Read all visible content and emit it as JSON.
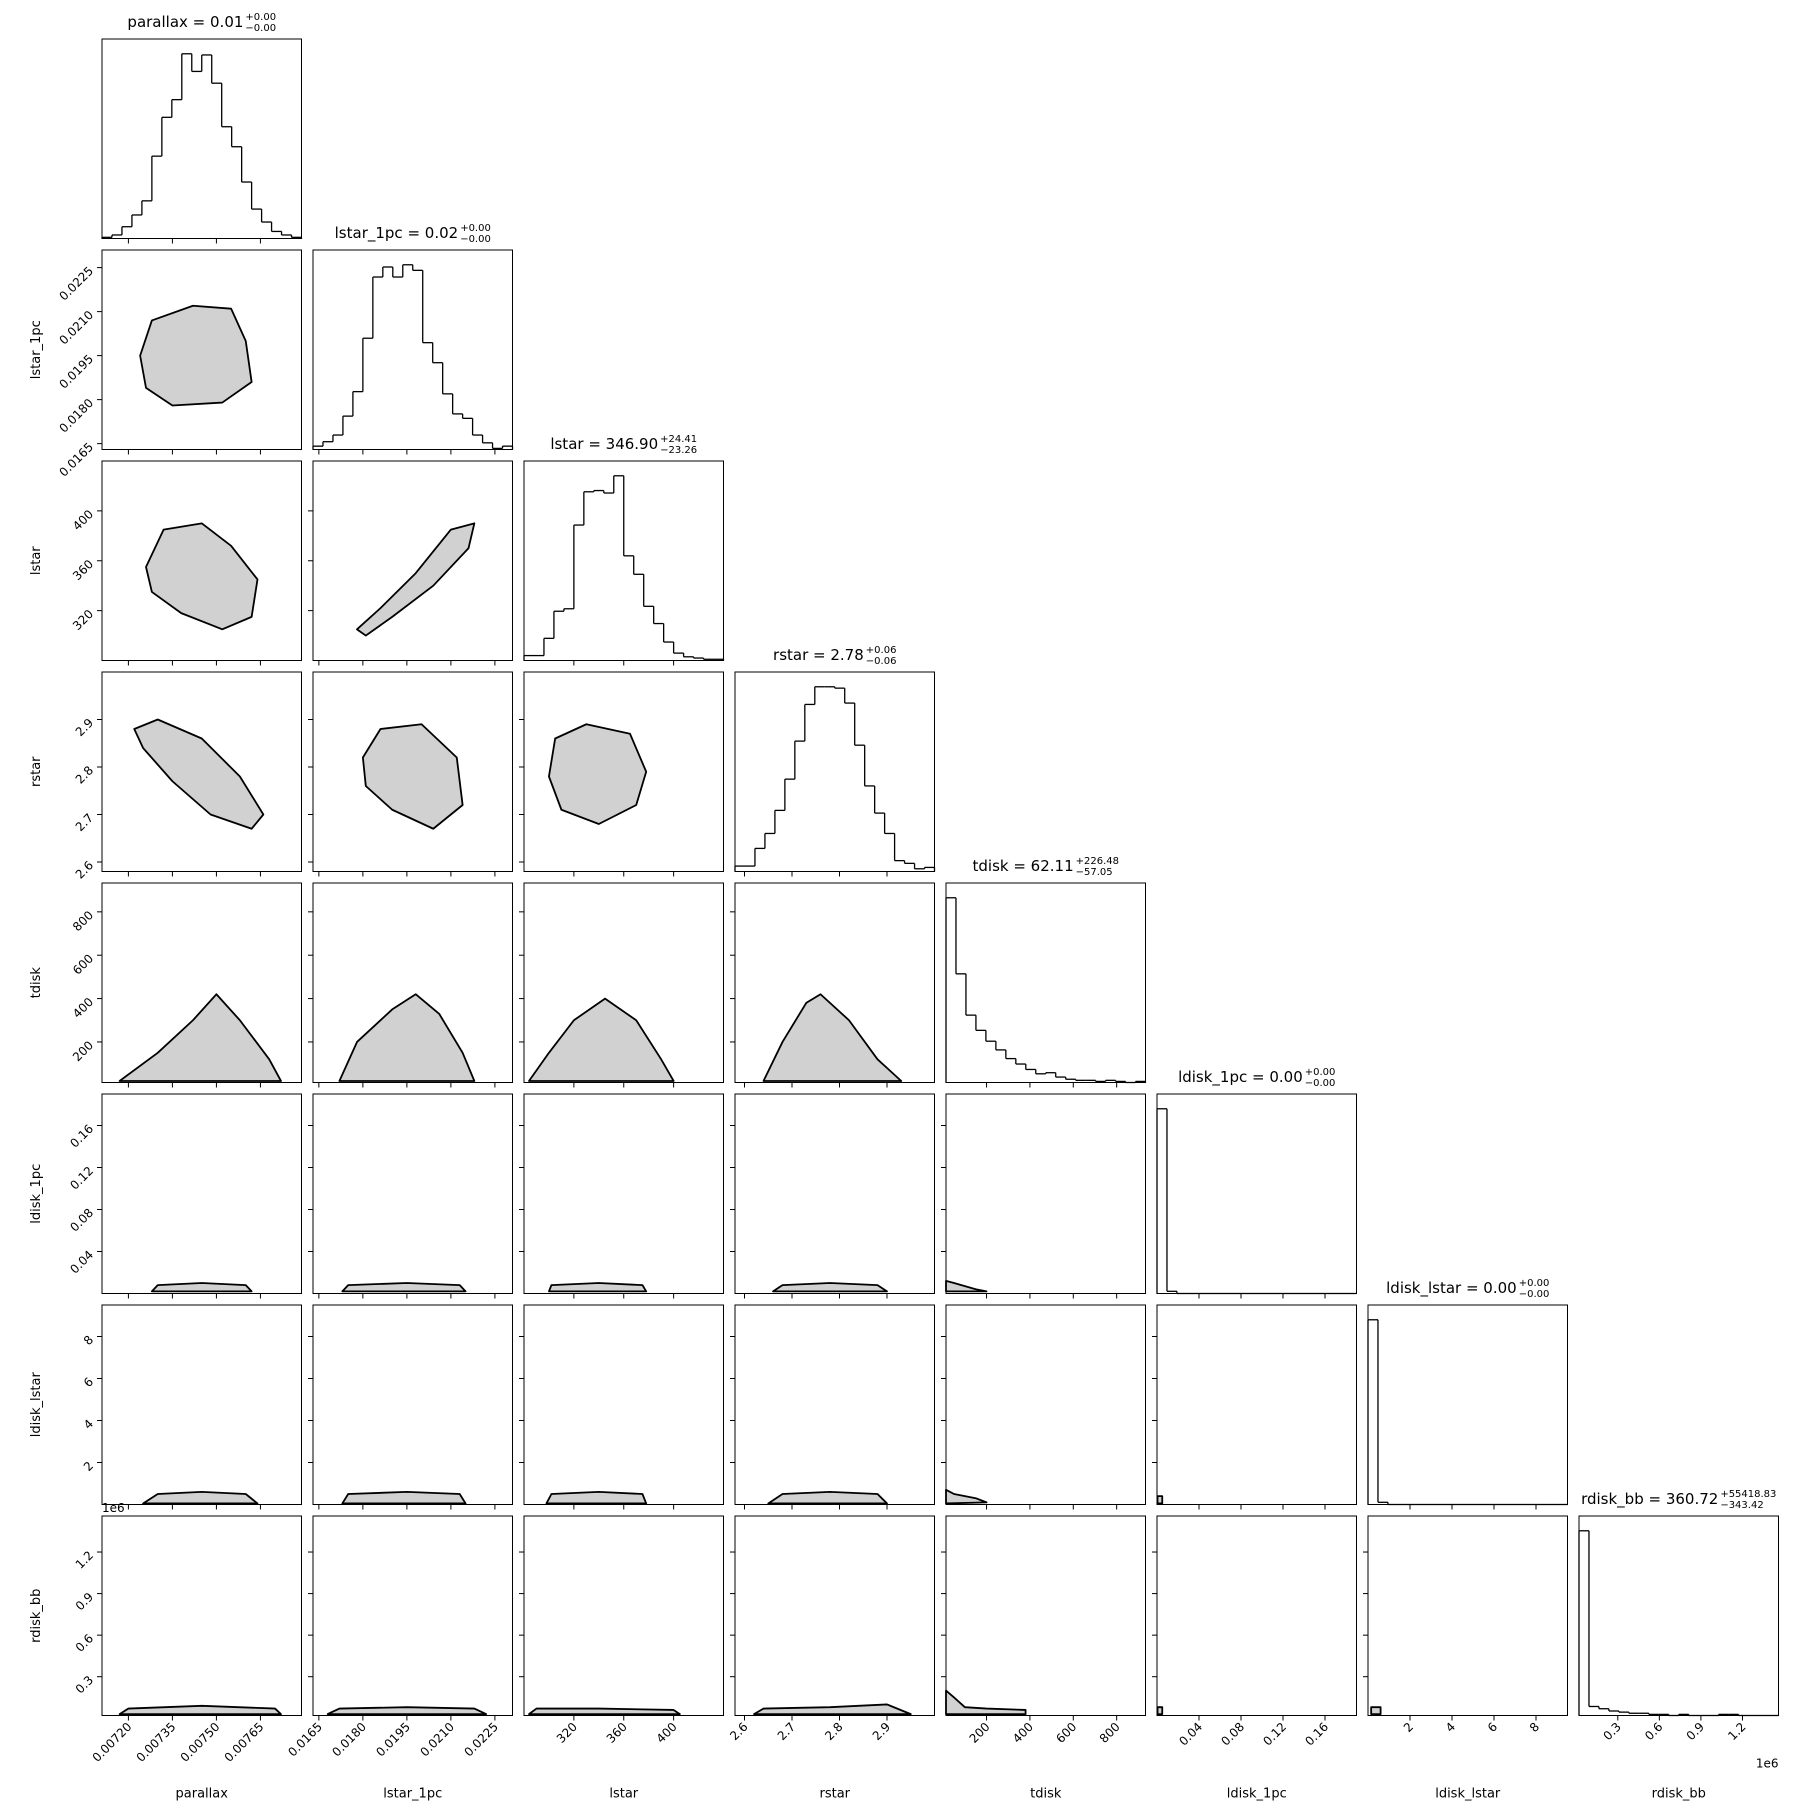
{
  "chart_data": {
    "type": "corner",
    "params": [
      {
        "name": "parallax",
        "title": "parallax = 0.01",
        "title_upper": "+0.00",
        "title_lower": "−0.00",
        "lim": [
          0.00711,
          0.00779
        ],
        "ticks": [
          {
            "value": 0.0072,
            "label": "0.00720"
          },
          {
            "value": 0.00735,
            "label": "0.00735"
          },
          {
            "value": 0.0075,
            "label": "0.00750"
          },
          {
            "value": 0.00765,
            "label": "0.00765"
          }
        ],
        "bins": [
          0.00711,
          0.007144,
          0.007178,
          0.007212,
          0.007246,
          0.00728,
          0.007314,
          0.007348,
          0.007382,
          0.007416,
          0.00745,
          0.007484,
          0.007518,
          0.007552,
          0.007586,
          0.00762,
          0.007654,
          0.007688,
          0.007722,
          0.007756,
          0.00779
        ],
        "counts": [
          1,
          3,
          10,
          20,
          32,
          70,
          103,
          118,
          157,
          142,
          156,
          132,
          95,
          78,
          48,
          25,
          14,
          6,
          3,
          1
        ]
      },
      {
        "name": "lstar_1pc",
        "title": "lstar_1pc = 0.02",
        "title_upper": "+0.00",
        "title_lower": "−0.00",
        "lim": [
          0.0163,
          0.0231
        ],
        "ticks": [
          {
            "value": 0.0165,
            "label": "0.0165"
          },
          {
            "value": 0.018,
            "label": "0.0180"
          },
          {
            "value": 0.0195,
            "label": "0.0195"
          },
          {
            "value": 0.021,
            "label": "0.0210"
          },
          {
            "value": 0.0225,
            "label": "0.0225"
          }
        ],
        "bins": [
          0.0163,
          0.01664,
          0.01698,
          0.01732,
          0.01766,
          0.018,
          0.01834,
          0.01868,
          0.01902,
          0.01936,
          0.0197,
          0.02004,
          0.02038,
          0.02072,
          0.02106,
          0.0214,
          0.02174,
          0.02208,
          0.02242,
          0.02276,
          0.0231
        ],
        "counts": [
          3,
          7,
          13,
          30,
          52,
          100,
          155,
          164,
          155,
          166,
          161,
          96,
          78,
          50,
          32,
          28,
          13,
          6,
          1,
          3
        ]
      },
      {
        "name": "lstar",
        "title": "lstar = 346.90",
        "title_upper": "+24.41",
        "title_lower": "−23.26",
        "lim": [
          280,
          440
        ],
        "ticks": [
          320,
          360,
          400
        ],
        "bins": [
          280,
          288,
          296,
          304,
          312,
          320,
          328,
          336,
          344,
          352,
          360,
          368,
          376,
          384,
          392,
          400,
          408,
          416,
          424,
          432,
          440
        ],
        "counts": [
          4,
          4,
          18,
          40,
          42,
          110,
          137,
          138,
          136,
          150,
          85,
          70,
          44,
          30,
          15,
          6,
          3,
          2,
          1,
          1
        ]
      },
      {
        "name": "rstar",
        "title": "rstar = 2.78",
        "title_upper": "+0.06",
        "title_lower": "−0.06",
        "lim": [
          2.58,
          3.0
        ],
        "ticks": [
          2.6,
          2.7,
          2.8,
          2.9
        ],
        "bins": [
          2.58,
          2.601,
          2.622,
          2.643,
          2.664,
          2.685,
          2.706,
          2.727,
          2.748,
          2.769,
          2.79,
          2.811,
          2.832,
          2.853,
          2.874,
          2.895,
          2.916,
          2.937,
          2.958,
          2.979,
          3.0
        ],
        "counts": [
          4,
          4,
          17,
          28,
          45,
          68,
          96,
          123,
          136,
          136,
          135,
          124,
          93,
          63,
          43,
          28,
          8,
          6,
          2,
          3
        ]
      },
      {
        "name": "tdisk",
        "title": "tdisk = 62.11",
        "title_upper": "+226.48",
        "title_lower": "−57.05",
        "lim": [
          13,
          933
        ],
        "ticks": [
          200,
          400,
          600,
          800
        ],
        "bins": [
          13,
          59,
          105,
          151,
          197,
          243,
          289,
          335,
          381,
          427,
          473,
          519,
          565,
          611,
          657,
          703,
          749,
          795,
          841,
          887,
          933
        ],
        "counts": [
          170,
          100,
          62,
          48,
          38,
          30,
          22,
          17,
          12,
          8,
          9,
          5,
          3,
          2,
          2,
          1,
          2,
          1,
          0,
          1
        ]
      },
      {
        "name": "ldisk_1pc",
        "title": "ldisk_1pc = 0.00",
        "title_upper": "+0.00",
        "title_lower": "−0.00",
        "lim": [
          0,
          0.19
        ],
        "ticks": [
          0.04,
          0.08,
          0.12,
          0.16
        ],
        "bins": [
          0,
          0.0095,
          0.019,
          0.0285,
          0.038,
          0.0475,
          0.057,
          0.0665,
          0.076,
          0.0855,
          0.095,
          0.1045,
          0.114,
          0.1235,
          0.133,
          0.1425,
          0.152,
          0.1615,
          0.171,
          0.1805,
          0.19
        ],
        "counts": [
          168,
          2,
          0,
          0,
          0,
          0,
          0,
          0,
          0,
          0,
          0,
          0,
          0,
          0,
          0,
          0,
          0,
          0,
          0,
          0
        ]
      },
      {
        "name": "ldisk_lstar",
        "title": "ldisk_lstar = 0.00",
        "title_upper": "+0.00",
        "title_lower": "−0.00",
        "lim": [
          0,
          9.5
        ],
        "ticks": [
          2,
          4,
          6,
          8
        ],
        "bins": [
          0,
          0.475,
          0.95,
          1.425,
          1.9,
          2.375,
          2.85,
          3.325,
          3.8,
          4.275,
          4.75,
          5.225,
          5.7,
          6.175,
          6.65,
          7.125,
          7.6,
          8.075,
          8.55,
          9.025,
          9.5
        ],
        "counts": [
          168,
          2,
          0,
          0,
          0,
          0,
          0,
          0,
          0,
          0,
          0,
          0,
          0,
          0,
          0,
          0,
          0,
          0,
          0,
          0
        ]
      },
      {
        "name": "rdisk_bb",
        "title": "rdisk_bb = 360.72",
        "title_upper": "+55418.83",
        "title_lower": "−343.42",
        "lim": [
          0.02,
          1.46
        ],
        "offset_label": "1e6",
        "ticks": [
          0.3,
          0.6,
          0.9,
          1.2
        ],
        "bins": [
          0.02,
          0.092,
          0.164,
          0.236,
          0.308,
          0.38,
          0.452,
          0.524,
          0.596,
          0.668,
          0.74,
          0.812,
          0.884,
          0.956,
          1.028,
          1.1,
          1.172,
          1.244,
          1.316,
          1.388,
          1.46
        ],
        "counts": [
          164,
          8,
          6,
          4,
          3,
          2,
          2,
          1,
          1,
          0,
          1,
          0,
          0,
          0,
          1,
          1,
          0,
          0,
          0,
          0
        ]
      }
    ],
    "contours": [
      [
        {
          "x": [
            0.00724,
            0.00728,
            0.00742,
            0.00755,
            0.0076,
            0.00762,
            0.00752,
            0.00735,
            0.00726
          ],
          "y": [
            0.0195,
            0.0207,
            0.0212,
            0.0211,
            0.02,
            0.0186,
            0.0179,
            0.0178,
            0.0184
          ]
        }
      ],
      [
        {
          "x": [
            0.00726,
            0.00732,
            0.00745,
            0.00755,
            0.00764,
            0.00762,
            0.00752,
            0.00738,
            0.00728
          ],
          "y": [
            355,
            385,
            390,
            372,
            345,
            315,
            305,
            318,
            335
          ]
        },
        {
          "x": [
            0.0178,
            0.0186,
            0.0198,
            0.021,
            0.0218,
            0.0216,
            0.0204,
            0.019,
            0.0181
          ],
          "y": [
            305,
            322,
            350,
            385,
            390,
            370,
            340,
            315,
            300
          ]
        }
      ],
      [
        {
          "x": [
            0.00722,
            0.0073,
            0.00745,
            0.00758,
            0.00766,
            0.00762,
            0.00748,
            0.00735,
            0.00725
          ],
          "y": [
            2.88,
            2.9,
            2.86,
            2.78,
            2.7,
            2.67,
            2.7,
            2.77,
            2.84
          ]
        },
        {
          "x": [
            0.018,
            0.0186,
            0.02,
            0.0212,
            0.0214,
            0.0204,
            0.019,
            0.0181
          ],
          "y": [
            2.82,
            2.88,
            2.89,
            2.82,
            2.72,
            2.67,
            2.71,
            2.76
          ]
        },
        {
          "x": [
            300,
            305,
            330,
            365,
            378,
            370,
            340,
            310
          ],
          "y": [
            2.78,
            2.86,
            2.89,
            2.87,
            2.79,
            2.72,
            2.68,
            2.71
          ]
        }
      ],
      [
        {
          "x": [
            0.00717,
            0.0073,
            0.00742,
            0.0075,
            0.00758,
            0.00768,
            0.00772
          ],
          "y": [
            20,
            150,
            300,
            420,
            300,
            120,
            20
          ]
        },
        {
          "x": [
            0.0172,
            0.0178,
            0.019,
            0.0198,
            0.0206,
            0.0214,
            0.0218
          ],
          "y": [
            20,
            200,
            350,
            420,
            330,
            150,
            20
          ]
        },
        {
          "x": [
            284,
            300,
            320,
            345,
            370,
            390,
            400
          ],
          "y": [
            20,
            150,
            300,
            400,
            300,
            120,
            20
          ]
        },
        {
          "x": [
            2.64,
            2.68,
            2.73,
            2.76,
            2.82,
            2.88,
            2.93
          ],
          "y": [
            20,
            200,
            380,
            420,
            300,
            120,
            20
          ]
        }
      ],
      [
        {
          "x": [
            0.00728,
            0.0073,
            0.00745,
            0.0076,
            0.00762
          ],
          "y": [
            0.002,
            0.008,
            0.01,
            0.008,
            0.002
          ]
        },
        {
          "x": [
            0.0173,
            0.0175,
            0.0195,
            0.0213,
            0.0215
          ],
          "y": [
            0.002,
            0.008,
            0.01,
            0.008,
            0.002
          ]
        },
        {
          "x": [
            300,
            302,
            340,
            375,
            378
          ],
          "y": [
            0.002,
            0.008,
            0.01,
            0.008,
            0.002
          ]
        },
        {
          "x": [
            2.66,
            2.68,
            2.78,
            2.88,
            2.9
          ],
          "y": [
            0.002,
            0.008,
            0.01,
            0.008,
            0.002
          ]
        },
        {
          "x": [
            13,
            13,
            50,
            150,
            200
          ],
          "y": [
            0.002,
            0.012,
            0.01,
            0.004,
            0.002
          ]
        }
      ],
      [
        {
          "x": [
            0.00725,
            0.0073,
            0.00745,
            0.0076,
            0.00764
          ],
          "y": [
            0.05,
            0.5,
            0.6,
            0.5,
            0.05
          ]
        },
        {
          "x": [
            0.0173,
            0.0175,
            0.0195,
            0.0213,
            0.0215
          ],
          "y": [
            0.05,
            0.5,
            0.6,
            0.5,
            0.05
          ]
        },
        {
          "x": [
            298,
            302,
            340,
            375,
            378
          ],
          "y": [
            0.05,
            0.5,
            0.6,
            0.5,
            0.05
          ]
        },
        {
          "x": [
            2.65,
            2.68,
            2.78,
            2.88,
            2.9
          ],
          "y": [
            0.05,
            0.5,
            0.6,
            0.5,
            0.05
          ]
        },
        {
          "x": [
            13,
            13,
            50,
            150,
            200
          ],
          "y": [
            0.05,
            0.7,
            0.5,
            0.3,
            0.1
          ]
        },
        {
          "x": [
            0.0005,
            0.0005,
            0.005,
            0.005
          ],
          "y": [
            0.05,
            0.4,
            0.4,
            0.05
          ]
        }
      ],
      [
        {
          "x": [
            0.00717,
            0.0072,
            0.00745,
            0.0077,
            0.00772
          ],
          "y": [
            0.03,
            0.07,
            0.09,
            0.07,
            0.03
          ]
        },
        {
          "x": [
            0.0168,
            0.0172,
            0.0195,
            0.0218,
            0.0222
          ],
          "y": [
            0.03,
            0.07,
            0.08,
            0.07,
            0.03
          ]
        },
        {
          "x": [
            284,
            290,
            340,
            400,
            405
          ],
          "y": [
            0.03,
            0.07,
            0.07,
            0.06,
            0.03
          ]
        },
        {
          "x": [
            2.62,
            2.64,
            2.78,
            2.9,
            2.95
          ],
          "y": [
            0.03,
            0.07,
            0.08,
            0.1,
            0.03
          ]
        },
        {
          "x": [
            13,
            13,
            50,
            100,
            200,
            380,
            380
          ],
          "y": [
            0.03,
            0.2,
            0.15,
            0.08,
            0.07,
            0.06,
            0.03
          ]
        },
        {
          "x": [
            0.0005,
            0.0005,
            0.005,
            0.005
          ],
          "y": [
            0.03,
            0.08,
            0.08,
            0.03
          ]
        },
        {
          "x": [
            0.15,
            0.15,
            0.6,
            0.6
          ],
          "y": [
            0.03,
            0.08,
            0.08,
            0.03
          ]
        }
      ]
    ]
  }
}
